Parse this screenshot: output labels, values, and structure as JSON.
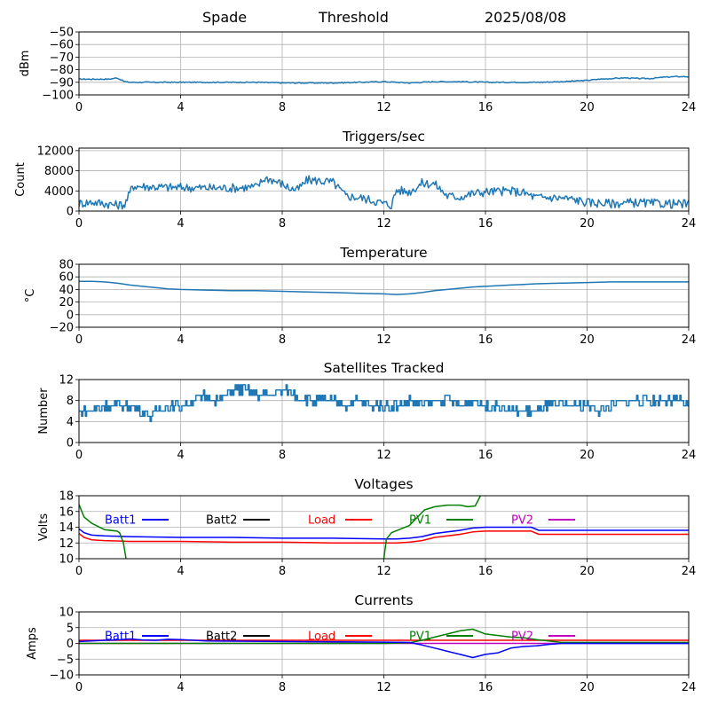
{
  "header": {
    "station": "Spade",
    "mode": "Threshold",
    "date": "2025/08/08"
  },
  "chart_data": [
    {
      "id": "signal",
      "type": "line",
      "title": "",
      "ylabel": "dBm",
      "xlim": [
        0,
        24
      ],
      "ylim": [
        -100,
        -50
      ],
      "xticks": [
        "0",
        "4",
        "8",
        "12",
        "16",
        "20",
        "24"
      ],
      "yticks": [
        "−100",
        "−90",
        "−80",
        "−70",
        "−60",
        "−50"
      ],
      "grid": true,
      "series": [
        {
          "color": "#1f77b4",
          "noise": 0.4,
          "x": [
            0,
            1.2,
            1.5,
            1.8,
            2,
            3,
            4,
            5,
            6,
            7,
            8,
            9,
            10,
            11,
            12,
            13,
            14,
            15,
            16,
            17,
            18,
            19,
            19.5,
            20,
            20.5,
            21,
            21.5,
            22,
            22.5,
            23,
            23.5,
            24
          ],
          "y": [
            -87.5,
            -87.5,
            -86.5,
            -89.5,
            -90,
            -90,
            -90,
            -90,
            -90,
            -90,
            -90.5,
            -90.5,
            -90.5,
            -90,
            -89.5,
            -90.5,
            -89.5,
            -89.5,
            -90,
            -90,
            -90,
            -89.5,
            -89,
            -88.5,
            -87.5,
            -87,
            -86.5,
            -87,
            -87,
            -86,
            -85.5,
            -85.5
          ]
        }
      ]
    },
    {
      "id": "triggers",
      "type": "line",
      "title": "Triggers/sec",
      "ylabel": "Count",
      "xlim": [
        0,
        24
      ],
      "ylim": [
        0,
        12500
      ],
      "xticks": [
        "0",
        "4",
        "8",
        "12",
        "16",
        "20",
        "24"
      ],
      "yticks": [
        "0",
        "4000",
        "8000",
        "12000"
      ],
      "grid": true,
      "series": [
        {
          "color": "#1f77b4",
          "noise": 900,
          "x": [
            0,
            0.5,
            1,
            1.5,
            1.8,
            2.0,
            2.1,
            2.5,
            3,
            3.5,
            4,
            5,
            6,
            6.5,
            7,
            7.3,
            7.5,
            8,
            8.3,
            8.6,
            9,
            9.5,
            10,
            10.5,
            11,
            11.5,
            12,
            12.3,
            12.5,
            13,
            13.5,
            14,
            14.5,
            15,
            15.5,
            16,
            16.5,
            17,
            17.5,
            18,
            18.5,
            19,
            19.5,
            20,
            20.5,
            21,
            21.5,
            22,
            22.5,
            23,
            23.5,
            24
          ],
          "y": [
            1500,
            1800,
            1500,
            1200,
            1300,
            3500,
            5000,
            4900,
            4800,
            4700,
            4700,
            4600,
            4600,
            4700,
            4800,
            6500,
            6400,
            5400,
            4500,
            4200,
            6200,
            6000,
            5700,
            3000,
            2700,
            2200,
            1500,
            1200,
            4200,
            3800,
            5500,
            5400,
            3000,
            2800,
            3500,
            3800,
            3900,
            4000,
            3600,
            2700,
            2700,
            2600,
            2300,
            1700,
            1600,
            1500,
            1600,
            1700,
            1500,
            1500,
            1400,
            1400
          ]
        }
      ]
    },
    {
      "id": "temperature",
      "type": "line",
      "title": "Temperature",
      "ylabel": "°C",
      "xlim": [
        0,
        24
      ],
      "ylim": [
        -20,
        80
      ],
      "xticks": [
        "0",
        "4",
        "8",
        "12",
        "16",
        "20",
        "24"
      ],
      "yticks": [
        "−20",
        "0",
        "20",
        "40",
        "60",
        "80"
      ],
      "grid": true,
      "series": [
        {
          "color": "#1f77b4",
          "noise": 0,
          "x": [
            0,
            0.5,
            1,
            1.5,
            2,
            2.5,
            3,
            3.5,
            4,
            5,
            6,
            7,
            8,
            9,
            10,
            11,
            12,
            12.5,
            13,
            13.5,
            14,
            14.5,
            15,
            15.5,
            16,
            16.5,
            17,
            17.5,
            18,
            19,
            20,
            21,
            22,
            23,
            24
          ],
          "y": [
            53,
            53,
            52,
            50,
            47,
            45,
            43,
            41,
            40,
            39,
            38,
            38,
            37,
            36,
            35,
            34,
            33,
            32,
            33,
            35,
            38,
            40,
            42,
            44,
            45,
            46,
            47,
            48,
            49,
            50,
            51,
            52,
            52,
            52,
            52
          ]
        }
      ]
    },
    {
      "id": "satellites",
      "type": "line",
      "title": "Satellites Tracked",
      "ylabel": "Number",
      "xlim": [
        0,
        24
      ],
      "ylim": [
        0,
        12
      ],
      "xticks": [
        "0",
        "4",
        "8",
        "12",
        "16",
        "20",
        "24"
      ],
      "yticks": [
        "0",
        "4",
        "8",
        "12"
      ],
      "grid": true,
      "series": [
        {
          "color": "#1f77b4",
          "noise": 0.9,
          "step": true,
          "x": [
            0,
            0.5,
            1,
            1.5,
            2,
            2.5,
            2.8,
            3,
            3.5,
            4,
            4.5,
            5,
            5.5,
            6,
            6.5,
            7,
            7.5,
            8,
            8.5,
            9,
            9.5,
            10,
            10.5,
            11,
            11.5,
            12,
            12.5,
            13,
            13.5,
            14,
            14.5,
            15,
            15.5,
            16,
            16.5,
            17,
            17.5,
            18,
            18.5,
            19,
            19.5,
            20,
            20.5,
            21,
            21.5,
            22,
            22.5,
            23,
            23.5,
            24
          ],
          "y": [
            6,
            6,
            7,
            7,
            7,
            6,
            5,
            6,
            7,
            7,
            8,
            9,
            8,
            10,
            10,
            9,
            9,
            10,
            9,
            8,
            8,
            8,
            7,
            8,
            7,
            7,
            7,
            8,
            7,
            8,
            8,
            7,
            8,
            7,
            7,
            6,
            6,
            6,
            7,
            7,
            7,
            7,
            6,
            7,
            8,
            8,
            8,
            8,
            8,
            7
          ]
        }
      ]
    },
    {
      "id": "voltages",
      "type": "line",
      "title": "Voltages",
      "ylabel": "Volts",
      "xlim": [
        0,
        24
      ],
      "ylim": [
        10,
        18
      ],
      "xticks": [
        "0",
        "4",
        "8",
        "12",
        "16",
        "20",
        "24"
      ],
      "yticks": [
        "10",
        "12",
        "14",
        "16",
        "18"
      ],
      "grid": true,
      "legend": [
        {
          "name": "Batt1",
          "color": "#0000ff"
        },
        {
          "name": "Batt2",
          "color": "#000000"
        },
        {
          "name": "Load",
          "color": "#ff0000"
        },
        {
          "name": "PV1",
          "color": "#008000"
        },
        {
          "name": "PV2",
          "color": "#bf00bf"
        }
      ],
      "series": [
        {
          "name": "Batt1",
          "color": "#0000ff",
          "noise": 0,
          "x": [
            0,
            0.2,
            0.5,
            1,
            2,
            4,
            6,
            8,
            10,
            12,
            12.5,
            13,
            13.5,
            14,
            14.5,
            15,
            15.5,
            16,
            17,
            17.8,
            18.1,
            20,
            22,
            24
          ],
          "y": [
            13.8,
            13.3,
            13,
            12.9,
            12.8,
            12.7,
            12.7,
            12.6,
            12.6,
            12.5,
            12.5,
            12.6,
            12.8,
            13.2,
            13.4,
            13.6,
            13.9,
            14.0,
            14.0,
            14.0,
            13.6,
            13.6,
            13.6,
            13.6
          ]
        },
        {
          "name": "Load",
          "color": "#ff0000",
          "noise": 0,
          "x": [
            0,
            0.2,
            0.5,
            1,
            2,
            4,
            6,
            8,
            10,
            12,
            12.5,
            13,
            13.5,
            14,
            14.5,
            15,
            15.5,
            16,
            17,
            17.8,
            18.1,
            20,
            22,
            24
          ],
          "y": [
            13.2,
            12.7,
            12.4,
            12.3,
            12.2,
            12.2,
            12.1,
            12.1,
            12.0,
            12.0,
            12.0,
            12.1,
            12.3,
            12.7,
            12.9,
            13.1,
            13.4,
            13.5,
            13.5,
            13.5,
            13.1,
            13.1,
            13.1,
            13.1
          ]
        },
        {
          "name": "PV1",
          "color": "#008000",
          "noise": 0,
          "segments": [
            {
              "x": [
                0,
                0.2,
                0.5,
                1,
                1.5,
                1.6,
                1.75,
                1.85
              ],
              "y": [
                16.9,
                15.3,
                14.5,
                13.7,
                13.5,
                13.3,
                12,
                10
              ]
            },
            {
              "x": [
                12,
                12.1,
                12.3,
                12.6,
                13,
                13.3,
                13.6,
                14,
                14.5,
                15,
                15.3,
                15.6,
                15.8
              ],
              "y": [
                10,
                12.5,
                13.3,
                13.7,
                14.2,
                15.2,
                16.2,
                16.6,
                16.8,
                16.8,
                16.6,
                16.7,
                18
              ]
            }
          ]
        }
      ]
    },
    {
      "id": "currents",
      "type": "line",
      "title": "Currents",
      "ylabel": "Amps",
      "xlim": [
        0,
        24
      ],
      "ylim": [
        -10,
        10
      ],
      "xticks": [
        "0",
        "4",
        "8",
        "12",
        "16",
        "20",
        "24"
      ],
      "yticks": [
        "−10",
        "−5",
        "0",
        "5",
        "10"
      ],
      "grid": true,
      "legend": [
        {
          "name": "Batt1",
          "color": "#0000ff"
        },
        {
          "name": "Batt2",
          "color": "#000000"
        },
        {
          "name": "Load",
          "color": "#ff0000"
        },
        {
          "name": "PV1",
          "color": "#008000"
        },
        {
          "name": "PV2",
          "color": "#bf00bf"
        }
      ],
      "series": [
        {
          "name": "Load",
          "color": "#ff0000",
          "noise": 0,
          "x": [
            0,
            24
          ],
          "y": [
            1,
            1
          ]
        },
        {
          "name": "PV2",
          "color": "#bf00bf",
          "noise": 0,
          "x": [
            0,
            24
          ],
          "y": [
            0,
            0
          ]
        },
        {
          "name": "PV1",
          "color": "#008000",
          "noise": 0,
          "x": [
            0,
            12,
            13,
            13.5,
            14,
            14.5,
            15,
            15.5,
            16,
            16.5,
            17,
            17.5,
            18,
            19,
            24
          ],
          "y": [
            0,
            0,
            0.2,
            1,
            2,
            3,
            4,
            4.5,
            3,
            2.5,
            2,
            1.8,
            1.2,
            0.3,
            0.3
          ]
        },
        {
          "name": "Batt1",
          "color": "#0000ff",
          "noise": 0,
          "x": [
            0,
            0.5,
            1,
            1.5,
            2,
            2.5,
            3,
            3.5,
            4,
            4.5,
            5,
            6,
            8,
            10,
            12,
            13,
            13.5,
            14,
            14.5,
            15,
            15.5,
            16,
            16.5,
            17,
            17.5,
            18,
            18.5,
            19,
            24
          ],
          "y": [
            0.6,
            0.8,
            1.0,
            1.1,
            1.4,
            1.1,
            1.0,
            1.3,
            1.2,
            1.0,
            0.8,
            0.7,
            0.6,
            0.5,
            0.4,
            0.3,
            -0.5,
            -1.5,
            -2.5,
            -3.5,
            -4.5,
            -3.5,
            -3,
            -1.5,
            -1,
            -0.8,
            -0.3,
            0,
            0
          ]
        }
      ]
    }
  ]
}
